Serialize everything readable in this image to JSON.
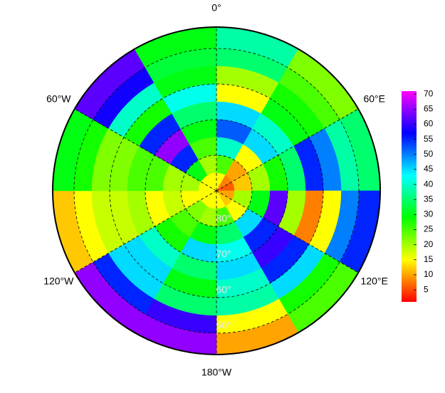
{
  "chart_data": {
    "type": "polar_grid",
    "lat_edges": [
      44,
      50,
      55,
      60,
      65,
      70,
      75,
      80,
      85,
      90
    ],
    "lon_edges": [
      0,
      30,
      60,
      90,
      120,
      150,
      180,
      210,
      240,
      270,
      300,
      330,
      360
    ],
    "values": [
      [
        38,
        22,
        35,
        55,
        25,
        10,
        65,
        65,
        12,
        30,
        62,
        30
      ],
      [
        35,
        25,
        38,
        50,
        28,
        15,
        60,
        55,
        15,
        28,
        58,
        32
      ],
      [
        20,
        28,
        50,
        15,
        45,
        38,
        35,
        45,
        18,
        22,
        40,
        30
      ],
      [
        15,
        30,
        55,
        8,
        55,
        40,
        30,
        45,
        18,
        22,
        28,
        42
      ],
      [
        45,
        40,
        35,
        20,
        60,
        45,
        35,
        40,
        20,
        25,
        55,
        35
      ],
      [
        52,
        45,
        28,
        62,
        55,
        42,
        45,
        28,
        15,
        25,
        65,
        30
      ],
      [
        40,
        15,
        20,
        30,
        45,
        35,
        30,
        25,
        18,
        20,
        55,
        25
      ],
      [
        25,
        10,
        12,
        20,
        15,
        25,
        20,
        22,
        15,
        20,
        30,
        20
      ],
      [
        15,
        8,
        6,
        10,
        12,
        15,
        15,
        15,
        15,
        15,
        15,
        15
      ]
    ],
    "ylim": [
      44,
      90
    ],
    "lonticks": [
      {
        "value": 0,
        "label": "0°"
      },
      {
        "value": 60,
        "label": "60°E"
      },
      {
        "value": 120,
        "label": "120°E"
      },
      {
        "value": 180,
        "label": "180°W"
      },
      {
        "value": 240,
        "label": "120°W"
      },
      {
        "value": 300,
        "label": "60°W"
      }
    ],
    "latticks": [
      {
        "value": 50,
        "label": "50°"
      },
      {
        "value": 60,
        "label": "60°"
      },
      {
        "value": 70,
        "label": "70°"
      },
      {
        "value": 80,
        "label": "80°"
      }
    ],
    "clim": [
      1,
      71
    ],
    "cticks": [
      5,
      10,
      15,
      20,
      25,
      30,
      35,
      40,
      45,
      50,
      55,
      60,
      65,
      70
    ],
    "colormap": [
      "#ff0000",
      "#ffff00",
      "#00ff00",
      "#00ffff",
      "#0000ff",
      "#ff00ff"
    ]
  }
}
